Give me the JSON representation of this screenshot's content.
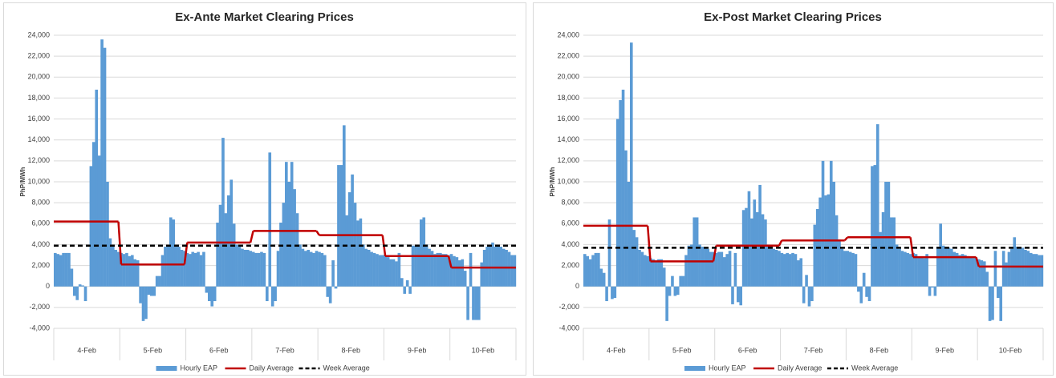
{
  "chart_data": [
    {
      "type": "bar_line",
      "title": "Ex-Ante Market Clearing Prices",
      "y_label": "PhP/MWh",
      "categories": [
        "4-Feb",
        "5-Feb",
        "6-Feb",
        "7-Feb",
        "8-Feb",
        "9-Feb",
        "10-Feb"
      ],
      "ylim": [
        -4000,
        24000
      ],
      "yticks": [
        {
          "value": -4000,
          "label": "-4,000"
        },
        {
          "value": -2000,
          "label": "-2,000"
        },
        0,
        {
          "value": 2000,
          "label": "2,000"
        },
        {
          "value": 4000,
          "label": "4,000"
        },
        {
          "value": 6000,
          "label": "6,000"
        },
        {
          "value": 8000,
          "label": "8,000"
        },
        {
          "value": 10000,
          "label": "10,000"
        },
        {
          "value": 12000,
          "label": "12,000"
        },
        {
          "value": 14000,
          "label": "14,000"
        },
        {
          "value": 16000,
          "label": "16,000"
        },
        {
          "value": 18000,
          "label": "18,000"
        },
        {
          "value": 20000,
          "label": "20,000"
        },
        {
          "value": 22000,
          "label": "22,000"
        },
        {
          "value": 24000,
          "label": "24,000"
        }
      ],
      "grid": true,
      "series": [
        {
          "name": "Hourly EAP",
          "color": "#5b9bd5",
          "values": [
            [
              3200,
              3100,
              3000,
              3200,
              3200,
              3200,
              1700,
              -900,
              -1300,
              200,
              100,
              -1400,
              0,
              11500,
              13800,
              18800,
              12500,
              23600,
              22800,
              10000,
              4600,
              3900,
              3500,
              3300
            ],
            [
              3200,
              3100,
              3200,
              2900,
              3000,
              2600,
              2500,
              -1600,
              -3300,
              -3100,
              -800,
              -900,
              -900,
              1000,
              1000,
              3000,
              3800,
              3900,
              6600,
              6400,
              3800,
              3800,
              3500,
              3400
            ],
            [
              3200,
              3100,
              3300,
              3200,
              3300,
              3000,
              3300,
              -600,
              -1400,
              -1900,
              -1400,
              6100,
              7800,
              14200,
              7000,
              8700,
              10200,
              6000,
              4000,
              3800,
              3600,
              3500,
              3500,
              3400
            ],
            [
              3300,
              3200,
              3200,
              3300,
              3200,
              -1400,
              12800,
              -1900,
              -1400,
              3400,
              6100,
              8000,
              11900,
              10000,
              11900,
              9300,
              7000,
              4000,
              3600,
              3400,
              3500,
              3300,
              3200,
              3400
            ],
            [
              3300,
              3200,
              3000,
              -1000,
              -1600,
              2500,
              -200,
              11600,
              11600,
              15400,
              6800,
              9000,
              10700,
              8000,
              6300,
              6500,
              4000,
              3600,
              3500,
              3300,
              3200,
              3100,
              3000,
              3000
            ],
            [
              3000,
              2800,
              2600,
              2600,
              2400,
              3200,
              800,
              -700,
              600,
              -700,
              3900,
              3900,
              3800,
              6400,
              6600,
              4000,
              3600,
              3400,
              3100,
              3200,
              3200,
              3100,
              3100,
              3000
            ],
            [
              3100,
              2900,
              2800,
              2500,
              2600,
              1500,
              -3200,
              3200,
              -3200,
              -3200,
              -3200,
              2300,
              3500,
              3800,
              3800,
              4200,
              3800,
              3900,
              3800,
              3600,
              3500,
              3300,
              3000,
              3000
            ]
          ]
        },
        {
          "name": "Daily Average",
          "color": "#c00000",
          "values": [
            6200,
            2100,
            4200,
            5300,
            4900,
            2900,
            1800
          ]
        },
        {
          "name": "Week Average",
          "color": "#000000",
          "value": 3900
        }
      ]
    },
    {
      "type": "bar_line",
      "title": "Ex-Post Market Clearing Prices",
      "y_label": "PhP/MWh",
      "categories": [
        "4-Feb",
        "5-Feb",
        "6-Feb",
        "7-Feb",
        "8-Feb",
        "9-Feb",
        "10-Feb"
      ],
      "ylim": [
        -4000,
        24000
      ],
      "yticks": [
        {
          "value": -4000,
          "label": "-4,000"
        },
        {
          "value": -2000,
          "label": "-2,000"
        },
        0,
        {
          "value": 2000,
          "label": "2,000"
        },
        {
          "value": 4000,
          "label": "4,000"
        },
        {
          "value": 6000,
          "label": "6,000"
        },
        {
          "value": 8000,
          "label": "8,000"
        },
        {
          "value": 10000,
          "label": "10,000"
        },
        {
          "value": 12000,
          "label": "12,000"
        },
        {
          "value": 14000,
          "label": "14,000"
        },
        {
          "value": 16000,
          "label": "16,000"
        },
        {
          "value": 18000,
          "label": "18,000"
        },
        {
          "value": 20000,
          "label": "20,000"
        },
        {
          "value": 22000,
          "label": "22,000"
        },
        {
          "value": 24000,
          "label": "24,000"
        }
      ],
      "grid": true,
      "series": [
        {
          "name": "Hourly EAP",
          "color": "#5b9bd5",
          "values": [
            [
              3100,
              2900,
              2600,
              3000,
              3200,
              3200,
              1700,
              1300,
              -1400,
              6400,
              -1200,
              -1100,
              16000,
              17800,
              18800,
              13000,
              10000,
              23300,
              5400,
              4700,
              3500,
              3300,
              3000,
              2900
            ],
            [
              2700,
              2600,
              2500,
              2600,
              2600,
              1800,
              -3300,
              -900,
              1000,
              -900,
              -800,
              1000,
              1000,
              3000,
              3900,
              4000,
              6600,
              6600,
              4000,
              3800,
              3700,
              3600,
              3300,
              3300
            ],
            [
              3200,
              3300,
              3300,
              2800,
              3100,
              3400,
              -1700,
              3200,
              -1500,
              -1800,
              7300,
              7500,
              9100,
              6500,
              8300,
              7100,
              9700,
              6900,
              6400,
              4000,
              3800,
              3600,
              3500,
              3400
            ],
            [
              3200,
              3100,
              3200,
              3100,
              3200,
              3100,
              2500,
              2700,
              -1600,
              1100,
              -1900,
              -1400,
              5900,
              7400,
              8500,
              12000,
              8700,
              8800,
              12000,
              10000,
              6800,
              4500,
              3600,
              3400
            ],
            [
              3400,
              3300,
              3200,
              3100,
              -500,
              -1600,
              1300,
              -1000,
              -1400,
              11500,
              11600,
              15500,
              5200,
              7100,
              10000,
              10000,
              6600,
              6600,
              4000,
              3600,
              3400,
              3300,
              3200,
              3100
            ],
            [
              3200,
              3100,
              2800,
              2800,
              2700,
              3100,
              -900,
              -100,
              -900,
              3800,
              6000,
              3900,
              3800,
              3700,
              3600,
              3300,
              3200,
              3000,
              3100,
              3000,
              2900,
              2800,
              2700,
              2700
            ],
            [
              2600,
              2500,
              2400,
              1400,
              -3300,
              -3200,
              3400,
              -1100,
              -3300,
              3400,
              2300,
              3300,
              3600,
              4700,
              3800,
              3800,
              3700,
              3500,
              3400,
              3200,
              3100,
              3100,
              3000,
              3000
            ]
          ]
        },
        {
          "name": "Daily Average",
          "color": "#c00000",
          "values": [
            5800,
            2400,
            3900,
            4400,
            4700,
            2800,
            1900
          ]
        },
        {
          "name": "Week Average",
          "color": "#000000",
          "value": 3700
        }
      ]
    }
  ]
}
